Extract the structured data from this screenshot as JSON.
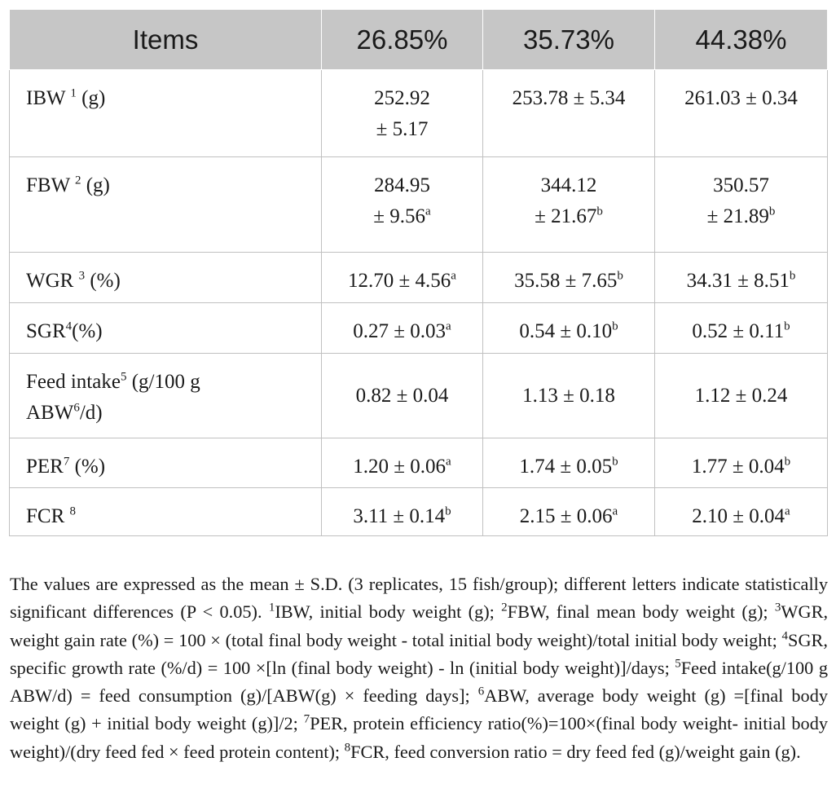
{
  "header": {
    "items": "Items",
    "col1": "26.85%",
    "col2": "35.73%",
    "col3": "44.38%"
  },
  "rows": [
    {
      "name": "IBW",
      "sup": "1",
      "unit": " (g)",
      "v1a": "252.92",
      "v1b": "± 5.17",
      "v1s": "",
      "v2": "253.78 ± 5.34",
      "v2s": "",
      "v3": "261.03 ± 0.34",
      "v3s": ""
    },
    {
      "name": "FBW",
      "sup": "2",
      "unit": " (g)",
      "v1a": "284.95",
      "v1b": "± 9.56",
      "v1s": "a",
      "v2a": "344.12",
      "v2b": "± 21.67",
      "v2s": "b",
      "v3a": "350.57",
      "v3b": "± 21.89",
      "v3s": "b"
    },
    {
      "name": "WGR",
      "sup": "3",
      "unit": " (%)",
      "v1": "12.70 ± 4.56",
      "v1s": "a",
      "v2": "35.58 ± 7.65",
      "v2s": "b",
      "v3": "34.31 ± 8.51",
      "v3s": "b"
    },
    {
      "name": "SGR",
      "sup": "4",
      "unit": "(%)",
      "v1": "0.27 ± 0.03",
      "v1s": "a",
      "v2": "0.54 ± 0.10",
      "v2s": "b",
      "v3": "0.52 ± 0.11",
      "v3s": "b"
    },
    {
      "name": "Feed intake",
      "sup": "5",
      "unit": " (g/100 g",
      "line2a": "ABW",
      "sup2": "6",
      "line2b": "/d)",
      "v1": "0.82 ± 0.04",
      "v2": "1.13 ± 0.18",
      "v3": "1.12 ± 0.24"
    },
    {
      "name": "PER",
      "sup": "7",
      "unit": " (%)",
      "v1": "1.20 ± 0.06",
      "v1s": "a",
      "v2": "1.74 ± 0.05",
      "v2s": "b",
      "v3": "1.77 ± 0.04",
      "v3s": "b"
    },
    {
      "name": "FCR",
      "sup": "8",
      "unit": "",
      "v1": "3.11 ± 0.14",
      "v1s": "b",
      "v2": "2.15 ± 0.06",
      "v2s": "a",
      "v3": "2.10 ± 0.04",
      "v3s": "a"
    }
  ],
  "footnote": {
    "intro": "The values are expressed as the mean ± S.D. (3 replicates, 15 fish/group); different letters indicate statistically significant differences (P < 0.05). ",
    "n1": "1",
    "t1": "IBW, initial body weight (g); ",
    "n2": "2",
    "t2": "FBW, final mean body weight (g); ",
    "n3": "3",
    "t3": "WGR, weight gain rate (%) = 100 × (total final body weight - total initial body weight)/total initial body weight; ",
    "n4": "4",
    "t4": "SGR, specific growth rate (%/d) = 100 ×[ln (final body weight) - ln (initial body weight)]/days; ",
    "n5": "5",
    "t5": "Feed intake(g/100 g ABW/d) = feed consumption (g)/[ABW(g) × feeding days]; ",
    "n6": "6",
    "t6": "ABW, average body weight (g) =[final body weight (g) + initial body weight (g)]/2; ",
    "n7": "7",
    "t7": "PER, protein efficiency ratio(%)=100×(final body weight- initial body weight)/(dry feed fed × feed protein content); ",
    "n8": "8",
    "t8": "FCR, feed conversion ratio = dry feed fed (g)/weight gain (g)."
  }
}
